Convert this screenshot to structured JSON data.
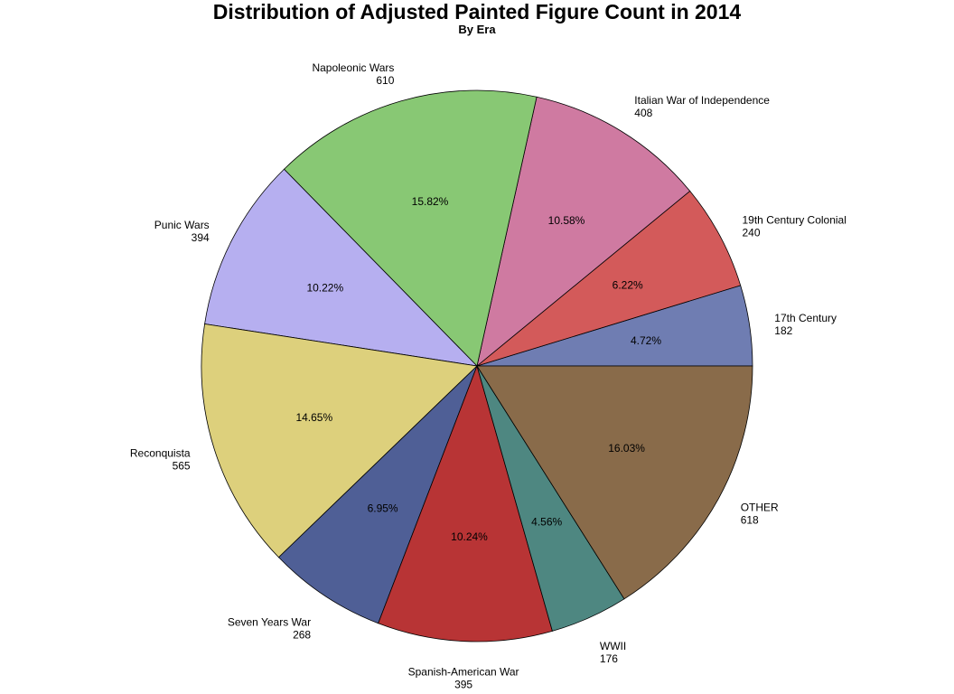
{
  "chart_data": {
    "type": "pie",
    "title": "Distribution of Adjusted Painted Figure Count in 2014",
    "subtitle": "By Era",
    "slices": [
      {
        "label": "17th Century",
        "value": 182,
        "percent": "4.72%",
        "color": "#6f7db2"
      },
      {
        "label": "19th Century Colonial",
        "value": 240,
        "percent": "6.22%",
        "color": "#d35a5a"
      },
      {
        "label": "Italian War of Independence",
        "value": 408,
        "percent": "10.58%",
        "color": "#cf7aa1"
      },
      {
        "label": "Napoleonic Wars",
        "value": 610,
        "percent": "15.82%",
        "color": "#88c874"
      },
      {
        "label": "Punic Wars",
        "value": 394,
        "percent": "10.22%",
        "color": "#b6aff0"
      },
      {
        "label": "Reconquista",
        "value": 565,
        "percent": "14.65%",
        "color": "#ddd07c"
      },
      {
        "label": "Seven Years War",
        "value": 268,
        "percent": "6.95%",
        "color": "#4f5f96"
      },
      {
        "label": "Spanish-American War",
        "value": 395,
        "percent": "10.24%",
        "color": "#b83435"
      },
      {
        "label": "WWII",
        "value": 176,
        "percent": "4.56%",
        "color": "#4e8781"
      },
      {
        "label": "OTHER",
        "value": 618,
        "percent": "16.03%",
        "color": "#896b4a"
      }
    ],
    "direction": "counterclockwise",
    "start": "east"
  }
}
